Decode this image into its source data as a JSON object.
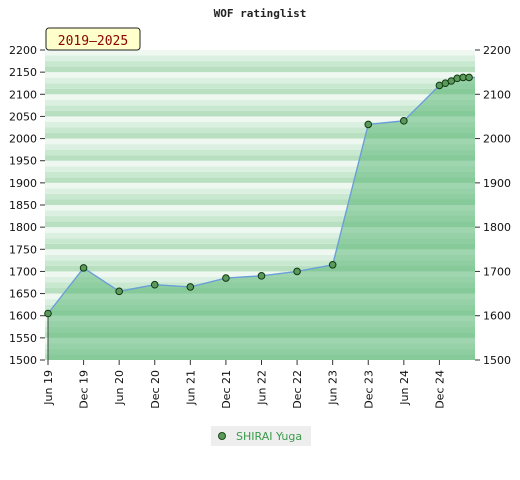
{
  "chart_data": {
    "type": "area",
    "title": "WOF ratinglist",
    "badge": "2019–2025",
    "ylim": [
      1500,
      2200
    ],
    "y_ticks": [
      1500,
      1550,
      1600,
      1650,
      1700,
      1750,
      1800,
      1850,
      1900,
      1950,
      2000,
      2050,
      2100,
      2150,
      2200
    ],
    "y_ticks_right": [
      1500,
      1600,
      1700,
      1800,
      1900,
      2000,
      2100,
      2200
    ],
    "x_tick_labels": [
      "Jun 19",
      "Dec 19",
      "Jun 20",
      "Dec 20",
      "Jun 21",
      "Dec 21",
      "Jun 22",
      "Dec 22",
      "Jun 23",
      "Dec 23",
      "Jun 24",
      "Dec 24"
    ],
    "grid": true,
    "legend_position": "bottom",
    "series": [
      {
        "name": "SHIRAI Yuga",
        "color": "#3a9a4a",
        "x": [
          "2019-06",
          "2019-12",
          "2020-06",
          "2020-12",
          "2021-06",
          "2021-12",
          "2022-06",
          "2022-12",
          "2023-06",
          "2023-12",
          "2024-06",
          "2024-12",
          "2025-01",
          "2025-02",
          "2025-03",
          "2025-04",
          "2025-05"
        ],
        "values": [
          1605,
          1708,
          1655,
          1670,
          1665,
          1685,
          1690,
          1700,
          1715,
          2032,
          2040,
          2120,
          2125,
          2130,
          2136,
          2138,
          2138
        ]
      }
    ]
  }
}
